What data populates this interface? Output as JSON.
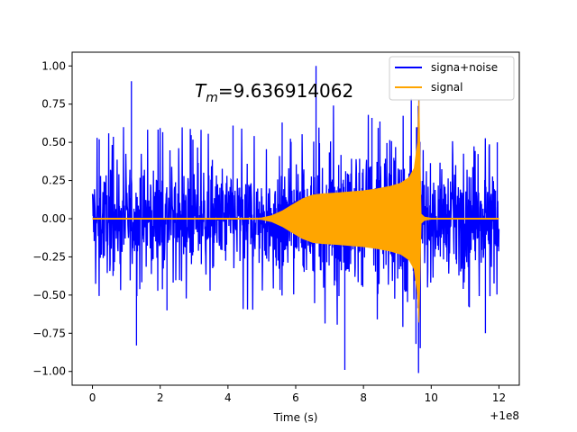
{
  "chart_data": {
    "type": "line",
    "title": "",
    "xlabel": "Time (s)",
    "ylabel": "",
    "offset_label": "+1e8",
    "xlim": [
      -0.6,
      12.6
    ],
    "ylim": [
      -1.09,
      1.09
    ],
    "x_ticks": [
      0,
      2,
      4,
      6,
      8,
      10,
      12
    ],
    "y_ticks": [
      -1.0,
      -0.75,
      -0.5,
      -0.25,
      0.0,
      0.25,
      0.5,
      0.75,
      1.0
    ],
    "x_tick_labels": [
      "0",
      "2",
      "4",
      "6",
      "8",
      "10",
      "12"
    ],
    "y_tick_labels": [
      "−1.00",
      "−0.75",
      "−0.50",
      "−0.25",
      "0.00",
      "0.25",
      "0.50",
      "0.75",
      "1.00"
    ],
    "legend_position": "top-right",
    "annotation": {
      "symbol": "T",
      "subscript": "m",
      "value_text": "=9.636914062",
      "x": 5.5,
      "y": 0.8
    },
    "series": [
      {
        "name": "signa+noise",
        "color": "#0000ff",
        "kind": "noise-band",
        "x_range": [
          0,
          12
        ],
        "typical_band": [
          -0.45,
          0.45
        ],
        "peaks": [
          {
            "x": 1.15,
            "y": 0.9
          },
          {
            "x": 1.3,
            "y": -0.83
          },
          {
            "x": 6.6,
            "y": 1.0
          },
          {
            "x": 7.45,
            "y": -0.99
          },
          {
            "x": 5.6,
            "y": 0.63
          },
          {
            "x": 8.25,
            "y": 0.66
          },
          {
            "x": 9.55,
            "y": -0.82
          },
          {
            "x": 11.6,
            "y": -0.75
          },
          {
            "x": 0.2,
            "y": 0.52
          },
          {
            "x": 11.95,
            "y": 0.5
          },
          {
            "x": 4.15,
            "y": 0.61
          },
          {
            "x": 2.2,
            "y": -0.6
          }
        ]
      },
      {
        "name": "signal",
        "color": "#ffa500",
        "kind": "chirp-envelope",
        "x": [
          0,
          4.7,
          5.0,
          5.3,
          5.6,
          5.9,
          6.2,
          6.5,
          6.8,
          7.2,
          7.6,
          8.0,
          8.4,
          8.8,
          9.1,
          9.35,
          9.5,
          9.6,
          9.637,
          9.7,
          9.8,
          10.0,
          12.0
        ],
        "upper": [
          0,
          0,
          0.005,
          0.02,
          0.05,
          0.09,
          0.13,
          0.155,
          0.163,
          0.168,
          0.175,
          0.183,
          0.195,
          0.212,
          0.232,
          0.27,
          0.33,
          0.5,
          0.78,
          0.03,
          0.01,
          0.003,
          0.0
        ],
        "lower": [
          0,
          0,
          -0.005,
          -0.02,
          -0.05,
          -0.09,
          -0.13,
          -0.155,
          -0.163,
          -0.168,
          -0.175,
          -0.183,
          -0.195,
          -0.212,
          -0.232,
          -0.27,
          -0.33,
          -0.5,
          -0.68,
          -0.03,
          -0.01,
          -0.003,
          0.0
        ]
      }
    ]
  }
}
